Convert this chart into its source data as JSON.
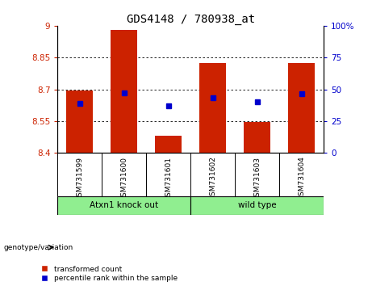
{
  "title": "GDS4148 / 780938_at",
  "samples": [
    "GSM731599",
    "GSM731600",
    "GSM731601",
    "GSM731602",
    "GSM731603",
    "GSM731604"
  ],
  "red_bar_tops": [
    8.695,
    8.98,
    8.48,
    8.825,
    8.545,
    8.825
  ],
  "red_bar_bottom": 8.4,
  "blue_marker_y": [
    8.635,
    8.682,
    8.622,
    8.662,
    8.642,
    8.678
  ],
  "ylim_left": [
    8.4,
    9.0
  ],
  "yticks_left": [
    8.4,
    8.55,
    8.7,
    8.85,
    9.0
  ],
  "ytick_labels_left": [
    "8.4",
    "8.55",
    "8.7",
    "8.85",
    "9"
  ],
  "yticks_right_pct": [
    0,
    25,
    50,
    75,
    100
  ],
  "ytick_labels_right": [
    "0",
    "25",
    "50",
    "75",
    "100%"
  ],
  "group_labels": [
    "Atxn1 knock out",
    "wild type"
  ],
  "group_col_ranges": [
    [
      0,
      3
    ],
    [
      3,
      6
    ]
  ],
  "bar_color": "#cc2200",
  "marker_color": "#0000cc",
  "bar_width": 0.6,
  "legend_label_red": "transformed count",
  "legend_label_blue": "percentile rank within the sample",
  "left_tick_color": "#cc2200",
  "right_tick_color": "#0000cc",
  "genotype_label": "genotype/variation",
  "background_xtick": "#c8c8c8",
  "background_group": "#90ee90",
  "grid_lines_at": [
    8.55,
    8.7,
    8.85
  ]
}
